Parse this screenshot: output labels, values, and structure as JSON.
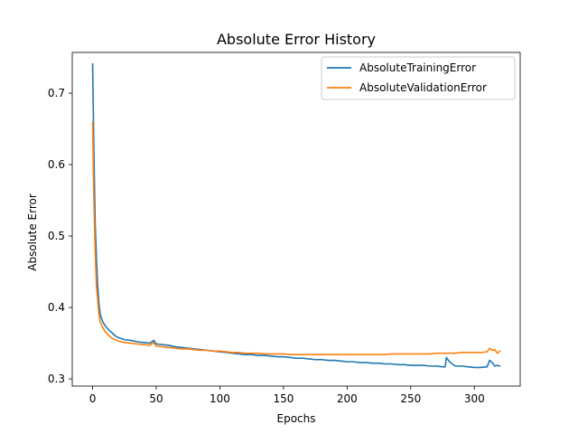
{
  "chart_data": {
    "type": "line",
    "title": "Absolute Error History",
    "xlabel": "Epochs",
    "ylabel": "Absolute Error",
    "xlim": [
      -16,
      336
    ],
    "ylim": [
      0.29,
      0.757
    ],
    "x_ticks": [
      0,
      50,
      100,
      150,
      200,
      250,
      300
    ],
    "y_ticks": [
      0.3,
      0.4,
      0.5,
      0.6,
      0.7
    ],
    "legend_position": "top-right",
    "grid": false,
    "series": [
      {
        "name": "AbsoluteTrainingError",
        "color": "#1f77b4",
        "points": [
          [
            0,
            0.741
          ],
          [
            1,
            0.62
          ],
          [
            2,
            0.52
          ],
          [
            3,
            0.47
          ],
          [
            4,
            0.43
          ],
          [
            5,
            0.405
          ],
          [
            6,
            0.39
          ],
          [
            8,
            0.38
          ],
          [
            10,
            0.374
          ],
          [
            12,
            0.37
          ],
          [
            15,
            0.365
          ],
          [
            18,
            0.36
          ],
          [
            20,
            0.358
          ],
          [
            25,
            0.355
          ],
          [
            30,
            0.354
          ],
          [
            35,
            0.352
          ],
          [
            40,
            0.351
          ],
          [
            45,
            0.35
          ],
          [
            48,
            0.354
          ],
          [
            50,
            0.349
          ],
          [
            55,
            0.348
          ],
          [
            60,
            0.347
          ],
          [
            65,
            0.345
          ],
          [
            70,
            0.344
          ],
          [
            75,
            0.343
          ],
          [
            80,
            0.342
          ],
          [
            85,
            0.341
          ],
          [
            90,
            0.34
          ],
          [
            95,
            0.339
          ],
          [
            100,
            0.338
          ],
          [
            105,
            0.337
          ],
          [
            110,
            0.336
          ],
          [
            115,
            0.335
          ],
          [
            120,
            0.334
          ],
          [
            125,
            0.334
          ],
          [
            130,
            0.333
          ],
          [
            135,
            0.333
          ],
          [
            140,
            0.332
          ],
          [
            145,
            0.331
          ],
          [
            150,
            0.331
          ],
          [
            155,
            0.33
          ],
          [
            160,
            0.329
          ],
          [
            165,
            0.329
          ],
          [
            170,
            0.328
          ],
          [
            175,
            0.327
          ],
          [
            180,
            0.327
          ],
          [
            185,
            0.326
          ],
          [
            190,
            0.326
          ],
          [
            195,
            0.325
          ],
          [
            200,
            0.324
          ],
          [
            205,
            0.324
          ],
          [
            210,
            0.323
          ],
          [
            215,
            0.323
          ],
          [
            220,
            0.322
          ],
          [
            225,
            0.322
          ],
          [
            230,
            0.321
          ],
          [
            235,
            0.321
          ],
          [
            240,
            0.32
          ],
          [
            245,
            0.32
          ],
          [
            250,
            0.319
          ],
          [
            255,
            0.319
          ],
          [
            260,
            0.319
          ],
          [
            265,
            0.318
          ],
          [
            270,
            0.318
          ],
          [
            275,
            0.317
          ],
          [
            277,
            0.317
          ],
          [
            278,
            0.33
          ],
          [
            280,
            0.325
          ],
          [
            282,
            0.322
          ],
          [
            285,
            0.318
          ],
          [
            290,
            0.318
          ],
          [
            295,
            0.317
          ],
          [
            300,
            0.316
          ],
          [
            305,
            0.316
          ],
          [
            310,
            0.317
          ],
          [
            312,
            0.326
          ],
          [
            314,
            0.323
          ],
          [
            316,
            0.318
          ],
          [
            318,
            0.319
          ],
          [
            320,
            0.318
          ]
        ]
      },
      {
        "name": "AbsoluteValidationError",
        "color": "#ff7f0e",
        "points": [
          [
            0,
            0.66
          ],
          [
            1,
            0.55
          ],
          [
            2,
            0.48
          ],
          [
            3,
            0.43
          ],
          [
            4,
            0.41
          ],
          [
            5,
            0.39
          ],
          [
            6,
            0.38
          ],
          [
            8,
            0.372
          ],
          [
            10,
            0.366
          ],
          [
            12,
            0.362
          ],
          [
            15,
            0.357
          ],
          [
            18,
            0.355
          ],
          [
            20,
            0.353
          ],
          [
            25,
            0.351
          ],
          [
            30,
            0.35
          ],
          [
            35,
            0.349
          ],
          [
            40,
            0.348
          ],
          [
            45,
            0.347
          ],
          [
            48,
            0.351
          ],
          [
            50,
            0.346
          ],
          [
            55,
            0.345
          ],
          [
            60,
            0.344
          ],
          [
            65,
            0.343
          ],
          [
            70,
            0.342
          ],
          [
            75,
            0.342
          ],
          [
            80,
            0.341
          ],
          [
            85,
            0.34
          ],
          [
            90,
            0.34
          ],
          [
            95,
            0.339
          ],
          [
            100,
            0.339
          ],
          [
            105,
            0.338
          ],
          [
            110,
            0.337
          ],
          [
            115,
            0.337
          ],
          [
            120,
            0.336
          ],
          [
            125,
            0.336
          ],
          [
            130,
            0.336
          ],
          [
            135,
            0.335
          ],
          [
            140,
            0.335
          ],
          [
            145,
            0.335
          ],
          [
            150,
            0.335
          ],
          [
            155,
            0.334
          ],
          [
            160,
            0.334
          ],
          [
            165,
            0.334
          ],
          [
            170,
            0.334
          ],
          [
            175,
            0.334
          ],
          [
            180,
            0.334
          ],
          [
            185,
            0.334
          ],
          [
            190,
            0.334
          ],
          [
            195,
            0.334
          ],
          [
            200,
            0.334
          ],
          [
            205,
            0.334
          ],
          [
            210,
            0.334
          ],
          [
            215,
            0.334
          ],
          [
            220,
            0.334
          ],
          [
            225,
            0.334
          ],
          [
            230,
            0.334
          ],
          [
            235,
            0.335
          ],
          [
            240,
            0.335
          ],
          [
            245,
            0.335
          ],
          [
            250,
            0.335
          ],
          [
            255,
            0.335
          ],
          [
            260,
            0.335
          ],
          [
            265,
            0.335
          ],
          [
            270,
            0.336
          ],
          [
            275,
            0.336
          ],
          [
            280,
            0.336
          ],
          [
            285,
            0.336
          ],
          [
            290,
            0.337
          ],
          [
            295,
            0.337
          ],
          [
            300,
            0.337
          ],
          [
            305,
            0.337
          ],
          [
            310,
            0.338
          ],
          [
            312,
            0.343
          ],
          [
            314,
            0.34
          ],
          [
            316,
            0.341
          ],
          [
            318,
            0.336
          ],
          [
            320,
            0.339
          ]
        ]
      }
    ]
  }
}
